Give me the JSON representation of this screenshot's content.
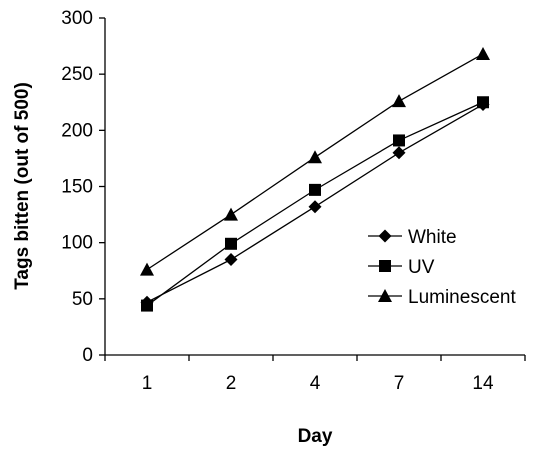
{
  "chart_data": {
    "type": "line",
    "categories": [
      "1",
      "2",
      "4",
      "7",
      "14"
    ],
    "xlabel": "Day",
    "ylabel": "Tags bitten (out of 500)",
    "ylim": [
      0,
      300
    ],
    "yticks": [
      0,
      50,
      100,
      150,
      200,
      250,
      300
    ],
    "grid": false,
    "legend_position": "right",
    "series": [
      {
        "name": "White",
        "marker": "diamond",
        "values": [
          47,
          85,
          132,
          180,
          223
        ]
      },
      {
        "name": "UV",
        "marker": "square",
        "values": [
          44,
          99,
          147,
          191,
          225
        ]
      },
      {
        "name": "Luminescent",
        "marker": "triangle",
        "values": [
          76,
          125,
          176,
          226,
          268
        ]
      }
    ]
  }
}
